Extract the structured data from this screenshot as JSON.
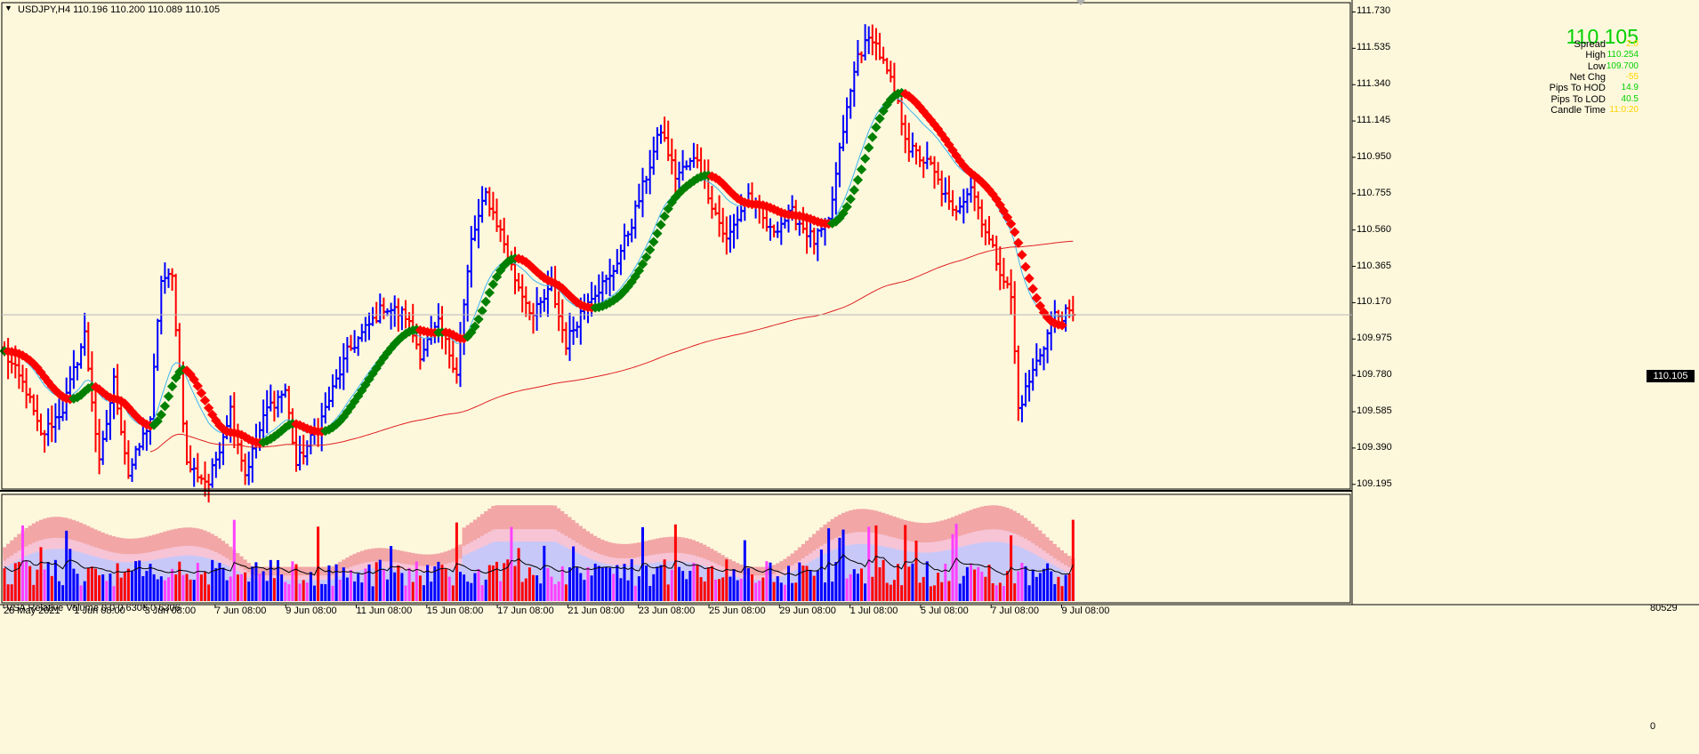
{
  "symbol_header": "USDJPY,H4  110.196 110.200 110.089 110.105",
  "info_panel": {
    "price": "110.105",
    "rows": [
      {
        "label": "Spread",
        "value": "2.0",
        "color": "#ffd400"
      },
      {
        "label": "High",
        "value": "110.254",
        "color": "#00d000"
      },
      {
        "label": "Low",
        "value": "109.700",
        "color": "#00d000"
      },
      {
        "label": "Net Chg",
        "value": "-55",
        "color": "#ffd400"
      },
      {
        "label": "Pips To HOD",
        "value": "14.9",
        "color": "#00d000"
      },
      {
        "label": "Pips To LOD",
        "value": "40.5",
        "color": "#00d000"
      },
      {
        "label": "Candle Time",
        "value": "11:0:20",
        "color": "#ffd400"
      }
    ]
  },
  "price_axis": {
    "labels": [
      "111.730",
      "111.535",
      "111.340",
      "111.145",
      "110.950",
      "110.755",
      "110.560",
      "110.365",
      "110.170",
      "109.975",
      "109.780",
      "109.585",
      "109.390",
      "109.195"
    ],
    "current_price_label": "110.105"
  },
  "indicator": {
    "title": "VSA Relative Volume 0 0 0 6306 0 6306",
    "scale_max": "80529",
    "scale_min": "0"
  },
  "time_axis": {
    "labels": [
      "28 May 2021",
      "1 Jun 08:00",
      "3 Jun 08:00",
      "7 Jun 08:00",
      "9 Jun 08:00",
      "11 Jun 08:00",
      "15 Jun 08:00",
      "17 Jun 08:00",
      "21 Jun 08:00",
      "23 Jun 08:00",
      "25 Jun 08:00",
      "29 Jun 08:00",
      "1 Jul 08:00",
      "5 Jul 08:00",
      "7 Jul 08:00",
      "9 Jul 08:00"
    ]
  },
  "colors": {
    "background": "#fdf8dc",
    "bull_bar": "#0000ff",
    "bear_bar": "#ff0000",
    "trail_up": "#008000",
    "trail_down": "#ff0000",
    "ma_fast": "#3cb4f0",
    "ma_slow": "#e02020",
    "vol_band_outer": "#f2a6a6",
    "vol_band_mid": "#f7c4d6",
    "vol_band_inner": "#c8c8f8",
    "vol_ma_line": "#000000"
  },
  "chart_data": {
    "type": "ohlc",
    "symbol": "USDJPY",
    "timeframe": "H4",
    "current_price": 110.105,
    "price_range": [
      109.17,
      111.78
    ],
    "series": [
      {
        "name": "USDJPY,H4",
        "style": "ohlc bars"
      }
    ],
    "price_path": [
      [
        0,
        109.9
      ],
      [
        6,
        109.7
      ],
      [
        10,
        109.45
      ],
      [
        16,
        109.6
      ],
      [
        22,
        110.0
      ],
      [
        26,
        109.3
      ],
      [
        30,
        109.75
      ],
      [
        34,
        109.25
      ],
      [
        40,
        109.55
      ],
      [
        43,
        110.3
      ],
      [
        46,
        110.3
      ],
      [
        50,
        109.3
      ],
      [
        56,
        109.2
      ],
      [
        62,
        109.6
      ],
      [
        66,
        109.25
      ],
      [
        72,
        109.6
      ],
      [
        77,
        109.7
      ],
      [
        80,
        109.3
      ],
      [
        86,
        109.5
      ],
      [
        94,
        109.9
      ],
      [
        100,
        110.05
      ],
      [
        104,
        110.15
      ],
      [
        110,
        110.1
      ],
      [
        114,
        109.9
      ],
      [
        119,
        110.05
      ],
      [
        124,
        109.8
      ],
      [
        128,
        110.5
      ],
      [
        132,
        110.75
      ],
      [
        136,
        110.55
      ],
      [
        140,
        110.3
      ],
      [
        145,
        110.1
      ],
      [
        150,
        110.25
      ],
      [
        154,
        109.95
      ],
      [
        160,
        110.2
      ],
      [
        166,
        110.3
      ],
      [
        172,
        110.6
      ],
      [
        176,
        110.85
      ],
      [
        180,
        111.1
      ],
      [
        184,
        110.85
      ],
      [
        190,
        110.95
      ],
      [
        194,
        110.7
      ],
      [
        198,
        110.5
      ],
      [
        204,
        110.75
      ],
      [
        210,
        110.55
      ],
      [
        216,
        110.65
      ],
      [
        222,
        110.5
      ],
      [
        226,
        110.6
      ],
      [
        230,
        111.1
      ],
      [
        234,
        111.5
      ],
      [
        238,
        111.6
      ],
      [
        244,
        111.3
      ],
      [
        248,
        111.0
      ],
      [
        254,
        110.9
      ],
      [
        260,
        110.65
      ],
      [
        265,
        110.8
      ],
      [
        270,
        110.5
      ],
      [
        276,
        110.2
      ],
      [
        278,
        109.6
      ],
      [
        282,
        109.8
      ],
      [
        288,
        110.1
      ],
      [
        293,
        110.11
      ]
    ],
    "overlays": [
      "trailing stop dots (green up / red down)",
      "fast moving average (sky blue)",
      "slow moving average (red)"
    ],
    "indicator": {
      "name": "VSA Relative Volume",
      "params": "0 0 0 6306 0 6306",
      "ylim": [
        0,
        80529
      ]
    }
  }
}
